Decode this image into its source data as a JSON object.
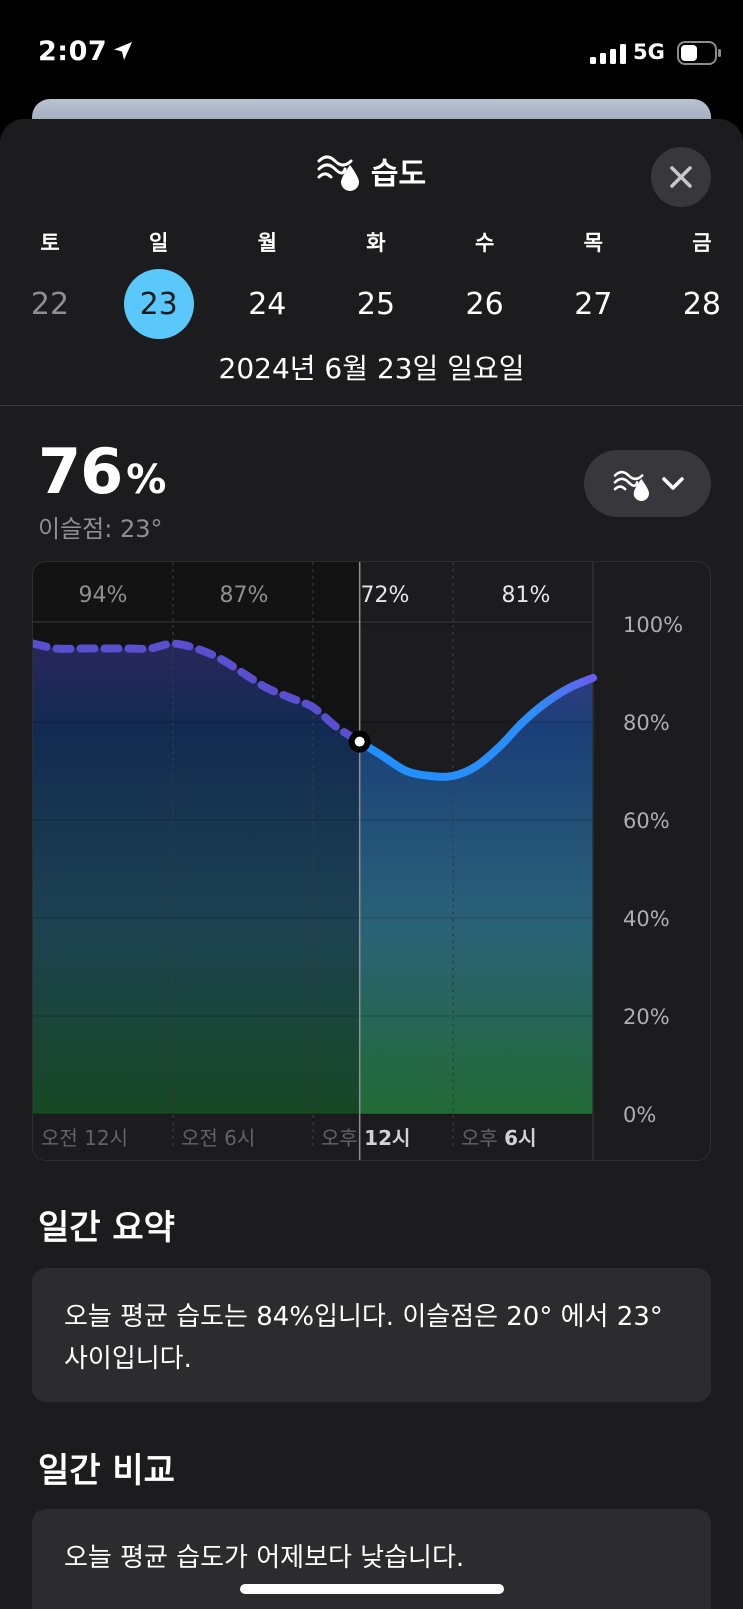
{
  "status_bar": {
    "time": "2:07",
    "network": "5G"
  },
  "header": {
    "title": "습도",
    "icon": "humidity-icon",
    "close_icon": "close-icon"
  },
  "week": {
    "days": [
      {
        "weekday": "토",
        "date": "22",
        "state": "past"
      },
      {
        "weekday": "일",
        "date": "23",
        "state": "selected"
      },
      {
        "weekday": "월",
        "date": "24",
        "state": "future"
      },
      {
        "weekday": "화",
        "date": "25",
        "state": "future"
      },
      {
        "weekday": "수",
        "date": "26",
        "state": "future"
      },
      {
        "weekday": "목",
        "date": "27",
        "state": "future"
      },
      {
        "weekday": "금",
        "date": "28",
        "state": "future"
      }
    ],
    "full_date": "2024년 6월 23일 일요일"
  },
  "current": {
    "value": "76",
    "unit": "%",
    "dew_point": "이슬점: 23°",
    "metric_button_icon": "humidity-icon",
    "metric_button_chevron": "chevron-down-icon"
  },
  "chart_data": {
    "type": "line",
    "y_ticks": [
      "100%",
      "80%",
      "60%",
      "40%",
      "20%",
      "0%"
    ],
    "ylim": [
      0,
      100
    ],
    "x_labels": [
      {
        "prefix": "오전",
        "hour": "12시"
      },
      {
        "prefix": "오전",
        "hour": "6시"
      },
      {
        "prefix": "오후",
        "hour": "12시"
      },
      {
        "prefix": "오후",
        "hour": "6시"
      }
    ],
    "period_values": [
      "94%",
      "87%",
      "72%",
      "81%"
    ],
    "x": [
      0,
      1,
      2,
      3,
      4,
      5,
      6,
      7,
      8,
      9,
      10,
      11,
      12,
      13,
      14,
      15,
      16,
      17,
      18,
      19,
      20,
      21,
      22,
      23,
      24
    ],
    "y": [
      96,
      95,
      95,
      95,
      95,
      95,
      96,
      95,
      93,
      90,
      87,
      85,
      83,
      79,
      76,
      73,
      70,
      69,
      69,
      71,
      75,
      80,
      84,
      87,
      89
    ],
    "current_hour": 14,
    "past_line_color": "#5a4fcf",
    "future_line_color": "#1e90ff"
  },
  "summary": {
    "title": "일간 요약",
    "text": "오늘 평균 습도는 84%입니다. 이슬점은 20° 에서 23° 사이입니다."
  },
  "comparison": {
    "title": "일간 비교",
    "text": "오늘 평균 습도가 어제보다 낮습니다."
  },
  "colors": {
    "accent": "#5ac8fa",
    "sheet_bg": "#1c1c1e",
    "card_bg": "#2c2c2e"
  }
}
